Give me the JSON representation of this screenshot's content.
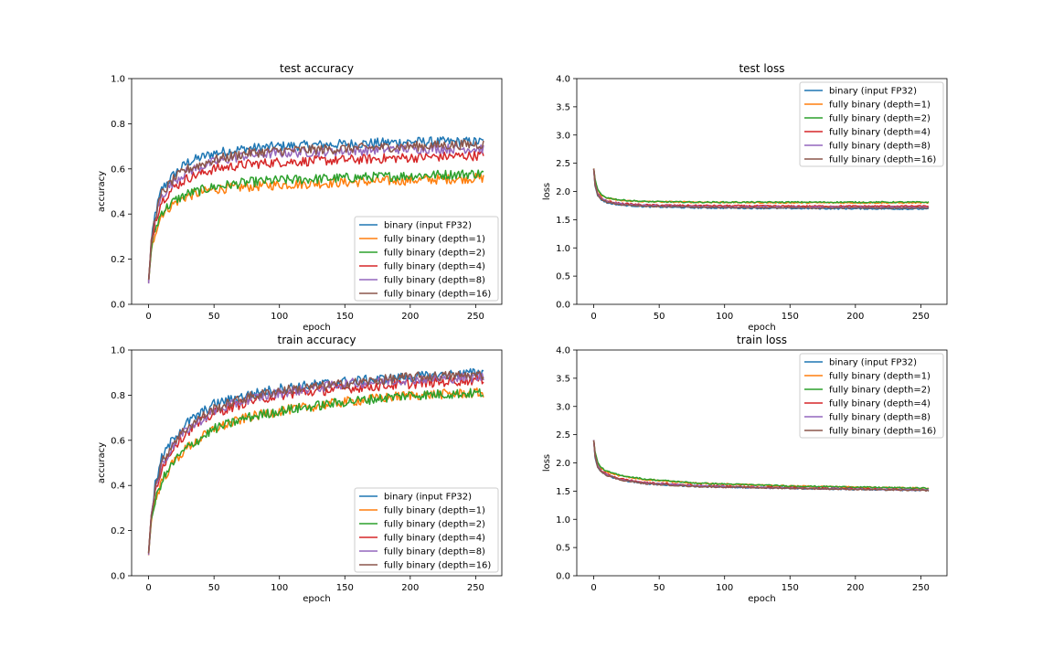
{
  "chart_data": [
    {
      "type": "line",
      "title": "test accuracy",
      "xlabel": "epoch",
      "ylabel": "accuracy",
      "xlim": [
        -13,
        270
      ],
      "ylim": [
        0,
        1.0
      ],
      "xticks": [
        "0",
        "50",
        "100",
        "150",
        "200",
        "250"
      ],
      "yticks": [
        "0.0",
        "0.2",
        "0.4",
        "0.6",
        "0.8",
        "1.0"
      ],
      "legend": "lower right",
      "series": [
        {
          "name": "binary (input FP32)",
          "color": "#1f77b4",
          "x": [
            0,
            2,
            5,
            10,
            20,
            30,
            50,
            75,
            100,
            150,
            200,
            256
          ],
          "y": [
            0.1,
            0.27,
            0.4,
            0.51,
            0.58,
            0.63,
            0.67,
            0.69,
            0.7,
            0.71,
            0.72,
            0.72
          ]
        },
        {
          "name": "fully binary (depth=1)",
          "color": "#ff7f0e",
          "x": [
            0,
            2,
            5,
            10,
            20,
            30,
            50,
            75,
            100,
            150,
            200,
            256
          ],
          "y": [
            0.1,
            0.23,
            0.32,
            0.4,
            0.45,
            0.48,
            0.51,
            0.52,
            0.53,
            0.54,
            0.55,
            0.56
          ]
        },
        {
          "name": "fully binary (depth=2)",
          "color": "#2ca02c",
          "x": [
            0,
            2,
            5,
            10,
            20,
            30,
            50,
            75,
            100,
            150,
            200,
            256
          ],
          "y": [
            0.1,
            0.24,
            0.33,
            0.41,
            0.46,
            0.49,
            0.52,
            0.54,
            0.55,
            0.56,
            0.57,
            0.58
          ]
        },
        {
          "name": "fully binary (depth=4)",
          "color": "#d62728",
          "x": [
            0,
            2,
            5,
            10,
            20,
            30,
            50,
            75,
            100,
            150,
            200,
            256
          ],
          "y": [
            0.1,
            0.26,
            0.37,
            0.46,
            0.52,
            0.56,
            0.6,
            0.62,
            0.63,
            0.64,
            0.65,
            0.66
          ]
        },
        {
          "name": "fully binary (depth=8)",
          "color": "#9467bd",
          "x": [
            0,
            2,
            5,
            10,
            20,
            30,
            50,
            75,
            100,
            150,
            200,
            256
          ],
          "y": [
            0.1,
            0.27,
            0.38,
            0.48,
            0.55,
            0.59,
            0.63,
            0.66,
            0.67,
            0.68,
            0.69,
            0.69
          ]
        },
        {
          "name": "fully binary (depth=16)",
          "color": "#8c564b",
          "x": [
            0,
            2,
            5,
            10,
            20,
            30,
            50,
            75,
            100,
            150,
            200,
            256
          ],
          "y": [
            0.1,
            0.28,
            0.39,
            0.49,
            0.56,
            0.6,
            0.64,
            0.67,
            0.68,
            0.69,
            0.7,
            0.71
          ]
        }
      ]
    },
    {
      "type": "line",
      "title": "test loss",
      "xlabel": "epoch",
      "ylabel": "loss",
      "xlim": [
        -13,
        270
      ],
      "ylim": [
        0,
        4.0
      ],
      "xticks": [
        "0",
        "50",
        "100",
        "150",
        "200",
        "250"
      ],
      "yticks": [
        "0.0",
        "0.5",
        "1.0",
        "1.5",
        "2.0",
        "2.5",
        "3.0",
        "3.5",
        "4.0"
      ],
      "legend": "upper right",
      "series": [
        {
          "name": "binary (input FP32)",
          "color": "#1f77b4",
          "x": [
            0,
            1,
            3,
            6,
            10,
            20,
            40,
            80,
            150,
            256
          ],
          "y": [
            2.4,
            2.1,
            1.93,
            1.85,
            1.8,
            1.76,
            1.73,
            1.71,
            1.7,
            1.69
          ]
        },
        {
          "name": "fully binary (depth=1)",
          "color": "#ff7f0e",
          "x": [
            0,
            1,
            3,
            6,
            10,
            20,
            40,
            80,
            150,
            256
          ],
          "y": [
            2.4,
            2.2,
            2.02,
            1.93,
            1.88,
            1.84,
            1.82,
            1.81,
            1.8,
            1.8
          ]
        },
        {
          "name": "fully binary (depth=2)",
          "color": "#2ca02c",
          "x": [
            0,
            1,
            3,
            6,
            10,
            20,
            40,
            80,
            150,
            256
          ],
          "y": [
            2.4,
            2.21,
            2.03,
            1.94,
            1.89,
            1.85,
            1.82,
            1.81,
            1.81,
            1.81
          ]
        },
        {
          "name": "fully binary (depth=4)",
          "color": "#d62728",
          "x": [
            0,
            1,
            3,
            6,
            10,
            20,
            40,
            80,
            150,
            256
          ],
          "y": [
            2.4,
            2.14,
            1.97,
            1.88,
            1.83,
            1.79,
            1.76,
            1.75,
            1.74,
            1.74
          ]
        },
        {
          "name": "fully binary (depth=8)",
          "color": "#9467bd",
          "x": [
            0,
            1,
            3,
            6,
            10,
            20,
            40,
            80,
            150,
            256
          ],
          "y": [
            2.4,
            2.12,
            1.95,
            1.87,
            1.82,
            1.78,
            1.75,
            1.73,
            1.72,
            1.72
          ]
        },
        {
          "name": "fully binary (depth=16)",
          "color": "#8c564b",
          "x": [
            0,
            1,
            3,
            6,
            10,
            20,
            40,
            80,
            150,
            256
          ],
          "y": [
            2.4,
            2.11,
            1.94,
            1.86,
            1.81,
            1.77,
            1.74,
            1.72,
            1.71,
            1.71
          ]
        }
      ]
    },
    {
      "type": "line",
      "title": "train accuracy",
      "xlabel": "epoch",
      "ylabel": "accuracy",
      "xlim": [
        -13,
        270
      ],
      "ylim": [
        0,
        1.0
      ],
      "xticks": [
        "0",
        "50",
        "100",
        "150",
        "200",
        "250"
      ],
      "yticks": [
        "0.0",
        "0.2",
        "0.4",
        "0.6",
        "0.8",
        "1.0"
      ],
      "legend": "lower right",
      "series": [
        {
          "name": "binary (input FP32)",
          "color": "#1f77b4",
          "x": [
            0,
            2,
            5,
            10,
            20,
            30,
            50,
            75,
            100,
            150,
            200,
            256
          ],
          "y": [
            0.1,
            0.27,
            0.4,
            0.52,
            0.62,
            0.68,
            0.76,
            0.8,
            0.83,
            0.86,
            0.88,
            0.9
          ]
        },
        {
          "name": "fully binary (depth=1)",
          "color": "#ff7f0e",
          "x": [
            0,
            2,
            5,
            10,
            20,
            30,
            50,
            75,
            100,
            150,
            200,
            256
          ],
          "y": [
            0.1,
            0.24,
            0.33,
            0.42,
            0.51,
            0.57,
            0.65,
            0.7,
            0.73,
            0.77,
            0.8,
            0.81
          ]
        },
        {
          "name": "fully binary (depth=2)",
          "color": "#2ca02c",
          "x": [
            0,
            2,
            5,
            10,
            20,
            30,
            50,
            75,
            100,
            150,
            200,
            256
          ],
          "y": [
            0.1,
            0.24,
            0.33,
            0.42,
            0.51,
            0.57,
            0.65,
            0.7,
            0.73,
            0.77,
            0.8,
            0.81
          ]
        },
        {
          "name": "fully binary (depth=4)",
          "color": "#d62728",
          "x": [
            0,
            2,
            5,
            10,
            20,
            30,
            50,
            75,
            100,
            150,
            200,
            256
          ],
          "y": [
            0.1,
            0.26,
            0.37,
            0.48,
            0.58,
            0.64,
            0.72,
            0.77,
            0.8,
            0.83,
            0.85,
            0.87
          ]
        },
        {
          "name": "fully binary (depth=8)",
          "color": "#9467bd",
          "x": [
            0,
            2,
            5,
            10,
            20,
            30,
            50,
            75,
            100,
            150,
            200,
            256
          ],
          "y": [
            0.1,
            0.27,
            0.38,
            0.49,
            0.59,
            0.65,
            0.73,
            0.78,
            0.81,
            0.85,
            0.87,
            0.88
          ]
        },
        {
          "name": "fully binary (depth=16)",
          "color": "#8c564b",
          "x": [
            0,
            2,
            5,
            10,
            20,
            30,
            50,
            75,
            100,
            150,
            200,
            256
          ],
          "y": [
            0.1,
            0.27,
            0.39,
            0.5,
            0.6,
            0.66,
            0.74,
            0.79,
            0.82,
            0.85,
            0.88,
            0.89
          ]
        }
      ]
    },
    {
      "type": "line",
      "title": "train loss",
      "xlabel": "epoch",
      "ylabel": "loss",
      "xlim": [
        -13,
        270
      ],
      "ylim": [
        0,
        4.0
      ],
      "xticks": [
        "0",
        "50",
        "100",
        "150",
        "200",
        "250"
      ],
      "yticks": [
        "0.0",
        "0.5",
        "1.0",
        "1.5",
        "2.0",
        "2.5",
        "3.0",
        "3.5",
        "4.0"
      ],
      "legend": "upper right",
      "series": [
        {
          "name": "binary (input FP32)",
          "color": "#1f77b4",
          "x": [
            0,
            1,
            3,
            6,
            10,
            20,
            40,
            80,
            150,
            256
          ],
          "y": [
            2.4,
            2.1,
            1.92,
            1.84,
            1.78,
            1.7,
            1.63,
            1.58,
            1.55,
            1.51
          ]
        },
        {
          "name": "fully binary (depth=1)",
          "color": "#ff7f0e",
          "x": [
            0,
            1,
            3,
            6,
            10,
            20,
            40,
            80,
            150,
            256
          ],
          "y": [
            2.4,
            2.18,
            2.0,
            1.9,
            1.84,
            1.77,
            1.7,
            1.64,
            1.59,
            1.55
          ]
        },
        {
          "name": "fully binary (depth=2)",
          "color": "#2ca02c",
          "x": [
            0,
            1,
            3,
            6,
            10,
            20,
            40,
            80,
            150,
            256
          ],
          "y": [
            2.4,
            2.19,
            2.01,
            1.91,
            1.85,
            1.78,
            1.71,
            1.64,
            1.59,
            1.55
          ]
        },
        {
          "name": "fully binary (depth=4)",
          "color": "#d62728",
          "x": [
            0,
            1,
            3,
            6,
            10,
            20,
            40,
            80,
            150,
            256
          ],
          "y": [
            2.4,
            2.13,
            1.95,
            1.86,
            1.8,
            1.72,
            1.65,
            1.6,
            1.56,
            1.52
          ]
        },
        {
          "name": "fully binary (depth=8)",
          "color": "#9467bd",
          "x": [
            0,
            1,
            3,
            6,
            10,
            20,
            40,
            80,
            150,
            256
          ],
          "y": [
            2.4,
            2.12,
            1.94,
            1.85,
            1.79,
            1.71,
            1.64,
            1.59,
            1.55,
            1.52
          ]
        },
        {
          "name": "fully binary (depth=16)",
          "color": "#8c564b",
          "x": [
            0,
            1,
            3,
            6,
            10,
            20,
            40,
            80,
            150,
            256
          ],
          "y": [
            2.4,
            2.11,
            1.93,
            1.84,
            1.78,
            1.7,
            1.63,
            1.58,
            1.55,
            1.51
          ]
        }
      ]
    }
  ]
}
